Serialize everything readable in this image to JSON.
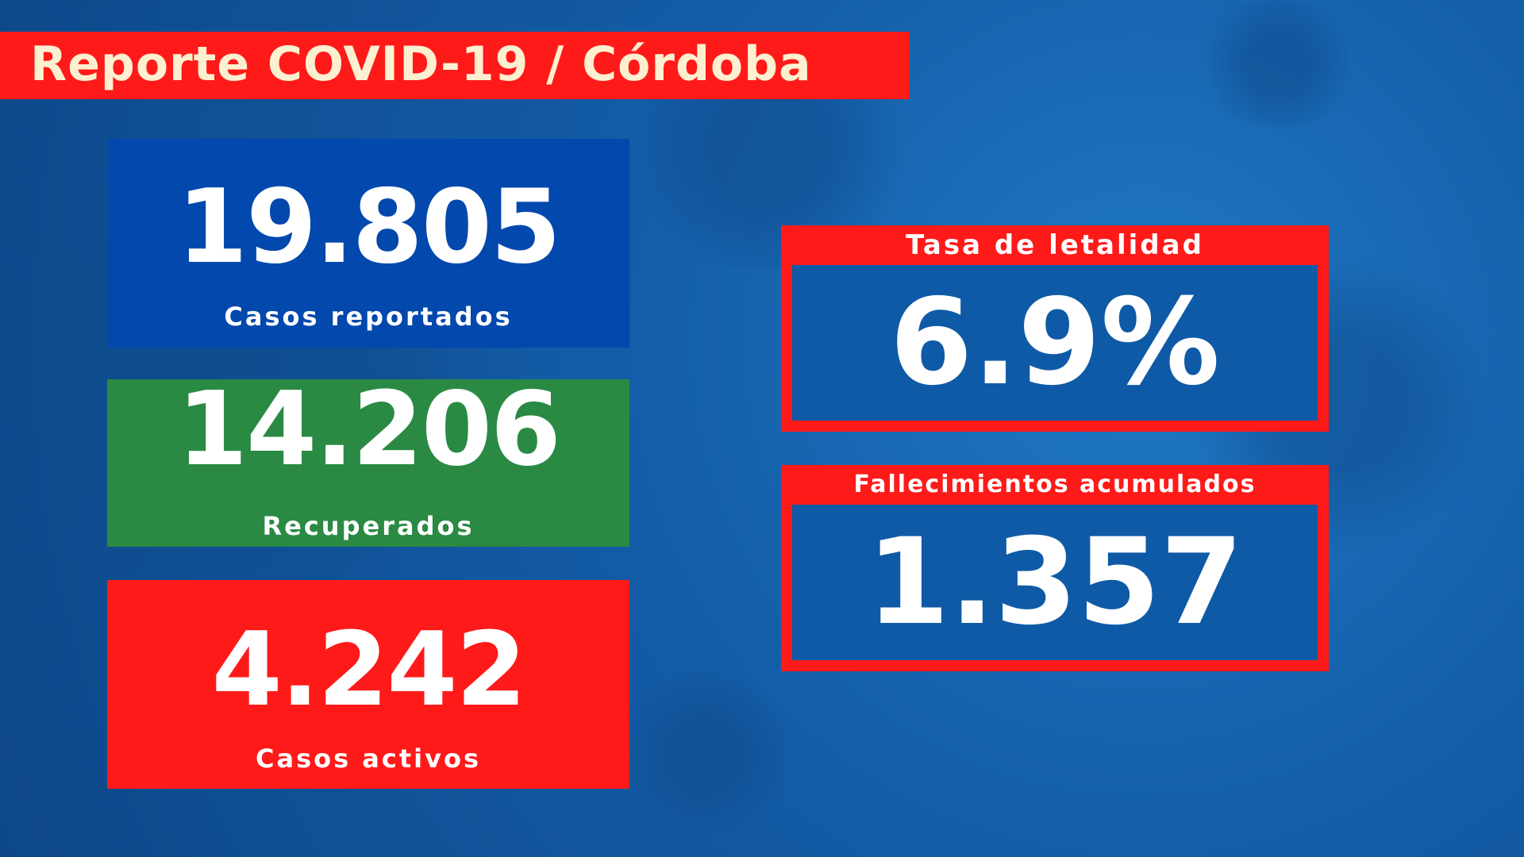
{
  "title": "Reporte COVID-19 / Córdoba",
  "cards": [
    {
      "value": "19.805",
      "label": "Casos reportados"
    },
    {
      "value": "14.206",
      "label": "Recuperados"
    },
    {
      "value": "4.242",
      "label": "Casos activos"
    }
  ],
  "right": [
    {
      "label": "Tasa de letalidad",
      "value": "6.9%"
    },
    {
      "label": "Fallecimientos acumulados",
      "value": "1.357"
    }
  ],
  "colors": {
    "red": "#ff1a1a",
    "blue": "#0248ad",
    "green": "#2a8a43",
    "background": "#145da8"
  }
}
